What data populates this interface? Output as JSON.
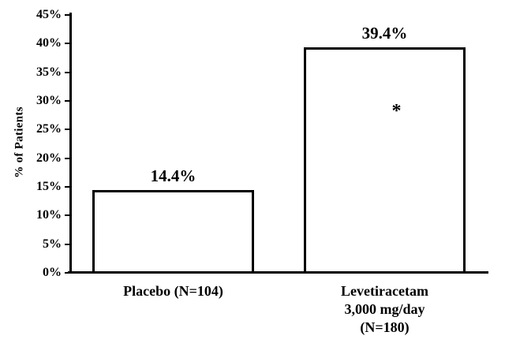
{
  "chart_data": {
    "type": "bar",
    "title": "",
    "xlabel": "",
    "ylabel": "% of Patients",
    "ylim": [
      0,
      45
    ],
    "grid": false,
    "legend": "none",
    "background_color": "#ffffff",
    "bar_fill_color": "#ffffff",
    "bar_border_color": "#000000",
    "yticks": [
      {
        "value": 0,
        "label": "0%"
      },
      {
        "value": 5,
        "label": "5%"
      },
      {
        "value": 10,
        "label": "10%"
      },
      {
        "value": 15,
        "label": "15%"
      },
      {
        "value": 20,
        "label": "20%"
      },
      {
        "value": 25,
        "label": "25%"
      },
      {
        "value": 30,
        "label": "30%"
      },
      {
        "value": 35,
        "label": "35%"
      },
      {
        "value": 40,
        "label": "40%"
      },
      {
        "value": 45,
        "label": "45%"
      }
    ],
    "categories": [
      {
        "lines": [
          "Placebo (N=104)"
        ]
      },
      {
        "lines": [
          "Levetiracetam",
          "3,000 mg/day",
          "(N=180)"
        ]
      }
    ],
    "values": [
      14.4,
      39.4
    ],
    "value_labels": [
      "14.4%",
      "39.4%"
    ],
    "annotations": [
      {
        "text": "*",
        "bar_index": 1,
        "y_value": 28.5,
        "meaning": "statistical-significance-marker"
      }
    ]
  }
}
